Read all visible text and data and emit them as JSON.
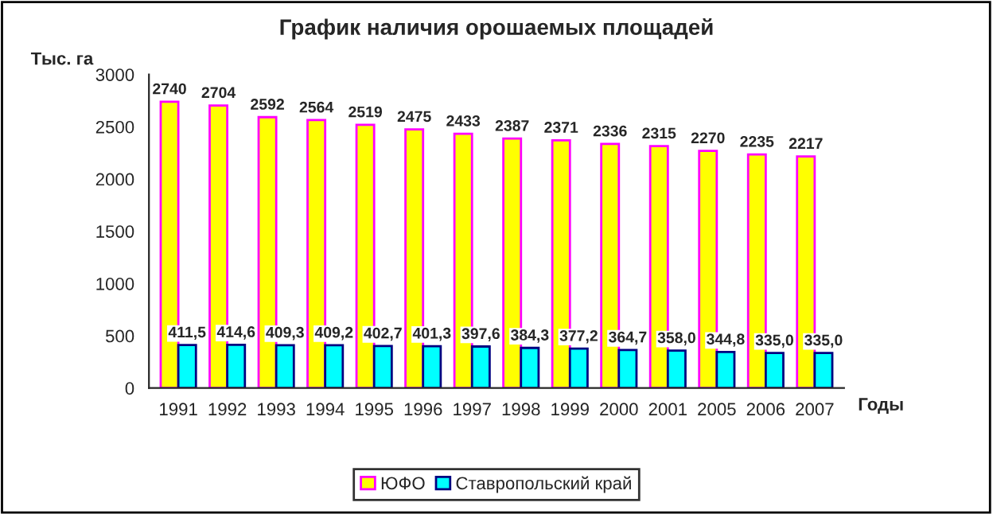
{
  "chart_data": {
    "type": "bar",
    "title": "График наличия орошаемых площадей",
    "xlabel": "Годы",
    "ylabel": "Тыс. га",
    "categories": [
      "1991",
      "1992",
      "1993",
      "1994",
      "1995",
      "1996",
      "1997",
      "1998",
      "1999",
      "2000",
      "2001",
      "2005",
      "2006",
      "2007"
    ],
    "series": [
      {
        "name": "ЮФО",
        "color": "#ffff00",
        "values": [
          2740,
          2704,
          2592,
          2564,
          2519,
          2475,
          2433,
          2387,
          2371,
          2336,
          2315,
          2270,
          2235,
          2217
        ],
        "value_labels": [
          "2740",
          "2704",
          "2592",
          "2564",
          "2519",
          "2475",
          "2433",
          "2387",
          "2371",
          "2336",
          "2315",
          "2270",
          "2235",
          "2217"
        ]
      },
      {
        "name": "Ставропольский край",
        "color": "#00ffff",
        "values": [
          411.5,
          414.6,
          409.3,
          409.2,
          402.7,
          401.3,
          397.6,
          384.3,
          377.2,
          364.7,
          358.0,
          344.8,
          335.0,
          335.0
        ],
        "value_labels": [
          "411,5",
          "414,6",
          "409,3",
          "409,2",
          "402,7",
          "401,3",
          "397,6",
          "384,3",
          "377,2",
          "364,7",
          "358,0",
          "344,8",
          "335,0",
          "335,0"
        ]
      }
    ],
    "ylim": [
      0,
      3000
    ],
    "yticks": [
      0,
      500,
      1000,
      1500,
      2000,
      2500,
      3000
    ],
    "grid": false,
    "legend": "bottom"
  }
}
